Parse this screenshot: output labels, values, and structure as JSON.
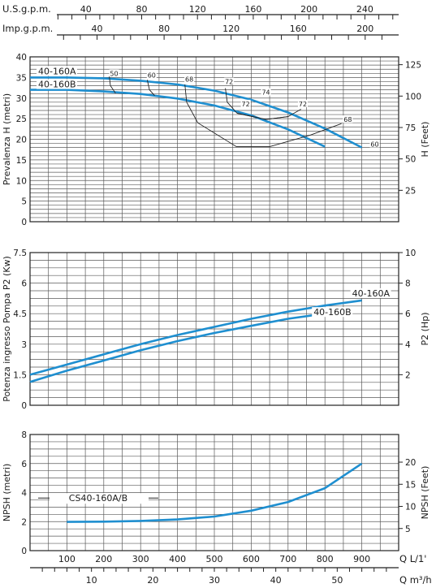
{
  "chart_data": [
    {
      "type": "line",
      "ylabel": "Prevalenza H (metri)",
      "ylabel_right": "H (Feet)",
      "x_unit": "L/1'",
      "xlim": [
        0,
        1000
      ],
      "ylim": [
        0,
        40
      ],
      "yticks": [
        0,
        5,
        10,
        15,
        20,
        25,
        30,
        35,
        40
      ],
      "yticks_right": [
        25,
        50,
        75,
        100,
        125
      ],
      "top_axes": [
        {
          "label": "U.S.g.p.m.",
          "ticks": [
            "40",
            "80",
            "120",
            "160",
            "200",
            "240"
          ],
          "gpm_values": [
            40,
            80,
            120,
            160,
            200,
            240
          ]
        },
        {
          "label": "Imp.g.p.m.",
          "ticks": [
            "40",
            "80",
            "120",
            "160",
            "200"
          ],
          "gpm_values": [
            40,
            80,
            120,
            160,
            200
          ]
        }
      ],
      "grid": true,
      "series": [
        {
          "name": "40-160A",
          "color": "#1f8fd0",
          "x": [
            0,
            100,
            200,
            300,
            400,
            500,
            600,
            700,
            800,
            900
          ],
          "y": [
            35,
            35,
            34.8,
            34.2,
            33.3,
            31.8,
            29.6,
            26.5,
            22.6,
            18
          ]
        },
        {
          "name": "40-160B",
          "color": "#1f8fd0",
          "x": [
            0,
            100,
            200,
            300,
            400,
            500,
            600,
            700,
            800
          ],
          "y": [
            32,
            32,
            31.6,
            31,
            29.9,
            28.2,
            25.8,
            22.4,
            18.2
          ]
        }
      ],
      "efficiency_curves": [
        {
          "label": "50",
          "x": [
            215,
            218,
            232
          ],
          "y": [
            35.3,
            33,
            31.2
          ]
        },
        {
          "label": "60",
          "x": [
            318,
            324,
            338
          ],
          "y": [
            34.4,
            32,
            30.6
          ]
        },
        {
          "label": "68",
          "x": [
            420,
            425,
            455,
            560,
            650,
            760,
            845
          ],
          "y": [
            33.3,
            29,
            24,
            18.2,
            18.2,
            21,
            23.8
          ]
        },
        {
          "label": "72",
          "x": [
            530,
            535,
            562,
            640,
            700,
            735
          ],
          "y": [
            32.4,
            29,
            26.3,
            24.8,
            25.5,
            27.3
          ]
        },
        {
          "label": "72",
          "x": [
            562,
            640,
            700
          ],
          "y": [
            26.3,
            24.8,
            25.5
          ]
        },
        {
          "label": "74",
          "x": [
            630
          ],
          "y": [
            30.2
          ]
        }
      ],
      "efficiency_labels": [
        {
          "text": "50",
          "x": 228,
          "y": 35.8
        },
        {
          "text": "60",
          "x": 330,
          "y": 35.4
        },
        {
          "text": "68",
          "x": 432,
          "y": 34.4
        },
        {
          "text": "72",
          "x": 540,
          "y": 33.8
        },
        {
          "text": "72",
          "x": 585,
          "y": 28.4
        },
        {
          "text": "74",
          "x": 640,
          "y": 31.2
        },
        {
          "text": "72",
          "x": 740,
          "y": 28.4
        },
        {
          "text": "68",
          "x": 862,
          "y": 24.6
        },
        {
          "text": "60",
          "x": 935,
          "y": 18.6
        }
      ]
    },
    {
      "type": "line",
      "ylabel": "Potenza ingresso Pompa P2 (Kw)",
      "ylabel_right": "P2 (Hp)",
      "xlim": [
        0,
        1000
      ],
      "ylim": [
        0,
        7.5
      ],
      "yticks": [
        0,
        1.5,
        3,
        4.5,
        6,
        7.5
      ],
      "yticks_right": [
        2,
        4,
        6,
        8,
        10
      ],
      "grid": true,
      "series": [
        {
          "name": "40-160A",
          "color": "#1f8fd0",
          "x": [
            0,
            100,
            200,
            300,
            400,
            500,
            600,
            700,
            800,
            900
          ],
          "y": [
            1.5,
            2.0,
            2.5,
            3.0,
            3.45,
            3.85,
            4.25,
            4.6,
            4.9,
            5.15
          ]
        },
        {
          "name": "40-160B",
          "color": "#1f8fd0",
          "x": [
            0,
            100,
            200,
            300,
            400,
            500,
            600,
            700,
            800
          ],
          "y": [
            1.15,
            1.7,
            2.2,
            2.7,
            3.15,
            3.55,
            3.9,
            4.25,
            4.5
          ]
        }
      ]
    },
    {
      "type": "line",
      "ylabel": "NPSH (metri)",
      "ylabel_right": "NPSH (Feet)",
      "xlabel": "Q  L/1'",
      "xlabel2": "Q  m³/h",
      "xlim": [
        0,
        1000
      ],
      "ylim": [
        0,
        8
      ],
      "yticks": [
        0,
        2,
        4,
        6,
        8
      ],
      "yticks_right": [
        5,
        10,
        15,
        20
      ],
      "xticks": [
        100,
        200,
        300,
        400,
        500,
        600,
        700,
        800,
        900
      ],
      "xticks2": [
        10,
        20,
        30,
        40,
        50
      ],
      "grid": true,
      "series": [
        {
          "name": "CS40-160A/B",
          "color": "#1f8fd0",
          "x": [
            100,
            200,
            300,
            400,
            500,
            600,
            700,
            800,
            900
          ],
          "y": [
            1.98,
            2.0,
            2.05,
            2.15,
            2.35,
            2.75,
            3.35,
            4.3,
            6.0
          ]
        }
      ]
    }
  ]
}
